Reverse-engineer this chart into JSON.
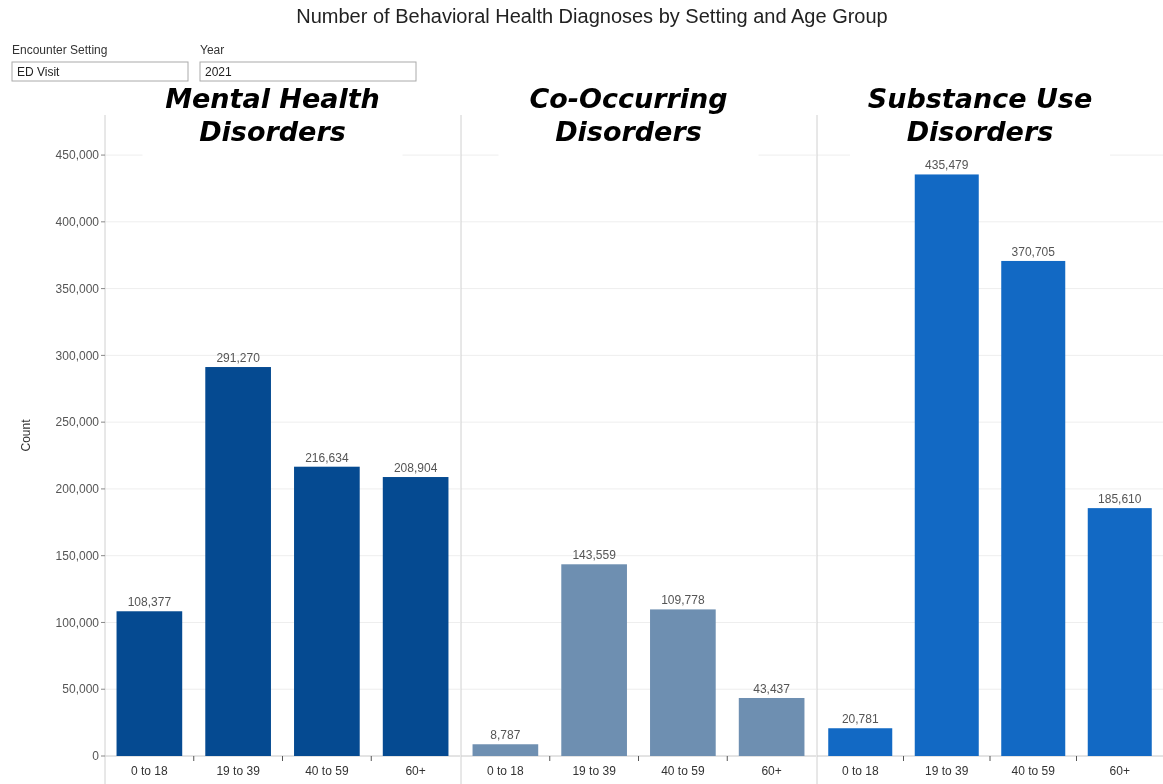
{
  "chart_data": [
    {
      "type": "bar",
      "title": "Number of Behavioral Health Diagnoses by Setting and Age Group",
      "subtitle": "Mental Health Disorders",
      "ylabel": "Count",
      "annotations": [
        "Encounter Setting",
        "ED Visit",
        "Year",
        "2021"
      ],
      "categories": [
        "0 to 18",
        "19 to 39",
        "40 to 59",
        "60+"
      ],
      "values": [
        108377,
        291270,
        216634,
        208904
      ],
      "color": "#054a91",
      "ylim": [
        0,
        480000
      ],
      "yticks": [
        {
          "value": 0,
          "label": "0"
        },
        {
          "value": 50000,
          "label": "50,000"
        },
        {
          "value": 100000,
          "label": "100,000"
        },
        {
          "value": 150000,
          "label": "150,000"
        },
        {
          "value": 200000,
          "label": "200,000"
        },
        {
          "value": 250000,
          "label": "250,000"
        },
        {
          "value": 300000,
          "label": "300,000"
        },
        {
          "value": 350000,
          "label": "350,000"
        },
        {
          "value": 400000,
          "label": "400,000"
        },
        {
          "value": 450000,
          "label": "450,000"
        }
      ],
      "grid": "y",
      "value_labels": [
        "108,377",
        "291,270",
        "216,634",
        "208,904"
      ]
    },
    {
      "type": "bar",
      "subtitle": "Co-Occurring Disorders",
      "categories": [
        "0 to 18",
        "19 to 39",
        "40 to 59",
        "60+"
      ],
      "values": [
        8787,
        143559,
        109778,
        43437
      ],
      "color": "#6e8fb1",
      "ylim": [
        0,
        480000
      ],
      "yticks": [
        0,
        50000,
        100000,
        150000,
        200000,
        250000,
        300000,
        350000,
        400000,
        450000
      ],
      "grid": "y",
      "tick_labels": "x",
      "value_labels": [
        "8,787",
        "143,559",
        "109,778",
        "43,437"
      ]
    },
    {
      "type": "bar",
      "subtitle": "Substance Use Disorders",
      "categories": [
        "0 to 18",
        "19 to 39",
        "40 to 59",
        "60+"
      ],
      "values": [
        20781,
        435479,
        370705,
        185610
      ],
      "color": "#1269c4",
      "ylim": [
        0,
        480000
      ],
      "yticks": [
        0,
        50000,
        100000,
        150000,
        200000,
        250000,
        300000,
        350000,
        400000,
        450000
      ],
      "grid": "y",
      "tick_labels": "x",
      "value_labels": [
        "20,781",
        "435,479",
        "370,705",
        "185,610"
      ]
    }
  ]
}
